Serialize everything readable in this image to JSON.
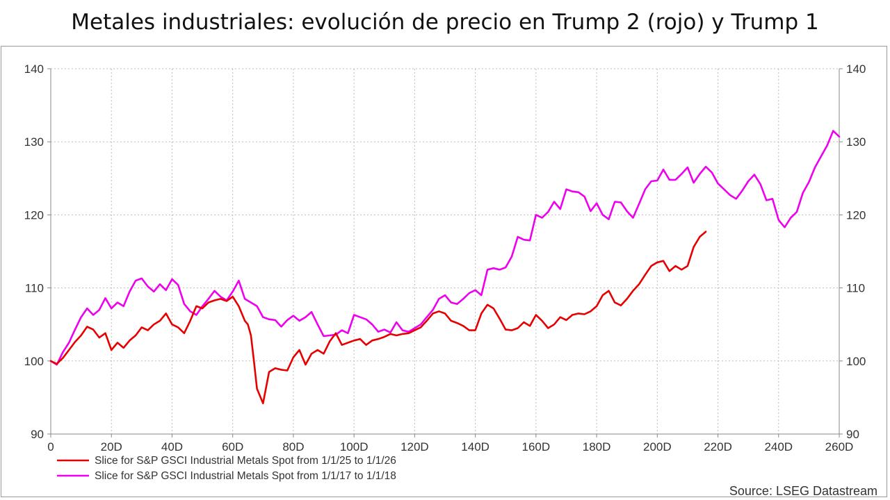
{
  "title": "Metales industriales: evolución de precio en Trump 2 (rojo) y Trump 1",
  "source": "Source: LSEG Datastream",
  "colors": {
    "red": "#e60000",
    "magenta": "#ee00ee",
    "grid": "#bbbbbb",
    "axis": "#888888"
  },
  "chart_data": {
    "type": "line",
    "title": "Metales industriales: evolución de precio en Trump 2 (rojo) y Trump 1",
    "xlabel": "",
    "ylabel": "",
    "xlim": [
      0,
      260
    ],
    "ylim": [
      90,
      140
    ],
    "x_ticks": [
      0,
      20,
      40,
      60,
      80,
      100,
      120,
      140,
      160,
      180,
      200,
      220,
      240,
      260
    ],
    "x_tick_labels": [
      "0",
      "20D",
      "40D",
      "60D",
      "80D",
      "100D",
      "120D",
      "140D",
      "160D",
      "180D",
      "200D",
      "220D",
      "240D",
      "260D"
    ],
    "y_ticks": [
      90,
      100,
      110,
      120,
      130,
      140
    ],
    "y_tick_labels": [
      "90",
      "100",
      "110",
      "120",
      "130",
      "140"
    ],
    "grid": true,
    "legend_position": "bottom-left",
    "series": [
      {
        "name": "Slice for S&P GSCI Industrial Metals Spot from 1/1/25 to 1/1/26",
        "color": "#e60000",
        "x": [
          0,
          2,
          4,
          6,
          8,
          10,
          12,
          14,
          16,
          18,
          20,
          22,
          24,
          26,
          28,
          30,
          32,
          34,
          36,
          38,
          40,
          42,
          44,
          46,
          48,
          50,
          52,
          54,
          56,
          58,
          60,
          62,
          64,
          65,
          66,
          67,
          68,
          70,
          72,
          74,
          76,
          78,
          80,
          82,
          84,
          86,
          88,
          90,
          92,
          94,
          96,
          98,
          100,
          102,
          104,
          106,
          108,
          110,
          112,
          114,
          116,
          118,
          120,
          122,
          124,
          126,
          128,
          130,
          132,
          134,
          136,
          138,
          140,
          142,
          144,
          146,
          148,
          150,
          152,
          154,
          156,
          158,
          160,
          162,
          164,
          166,
          168,
          170,
          172,
          174,
          176,
          178,
          180,
          182,
          184,
          186,
          188,
          190,
          192,
          194,
          196,
          198,
          200,
          202,
          204,
          206,
          208,
          210,
          212,
          214,
          216
        ],
        "values": [
          100,
          99.6,
          100.4,
          101.5,
          102.6,
          103.5,
          104.7,
          104.3,
          103.2,
          103.8,
          101.5,
          102.5,
          101.8,
          102.8,
          103.5,
          104.6,
          104.2,
          105,
          105.5,
          106.5,
          105,
          104.6,
          103.8,
          105.5,
          107.5,
          107.2,
          108,
          108.3,
          108.5,
          108.2,
          108.8,
          107.5,
          105.5,
          105,
          103.5,
          100,
          96.2,
          94.2,
          98.5,
          99,
          98.8,
          98.7,
          100.5,
          101.5,
          99.5,
          101,
          101.5,
          101,
          102.7,
          103.8,
          102.2,
          102.5,
          102.8,
          103,
          102.2,
          102.8,
          103,
          103.3,
          103.7,
          103.5,
          103.7,
          103.8,
          104.2,
          104.6,
          105.5,
          106.5,
          106.8,
          106.5,
          105.5,
          105.2,
          104.8,
          104.2,
          104.2,
          106.5,
          107.7,
          107.2,
          105.8,
          104.3,
          104.2,
          104.5,
          105.3,
          104.8,
          106.3,
          105.5,
          104.5,
          105,
          106,
          105.6,
          106.3,
          106.5,
          106.4,
          106.8,
          107.5,
          109,
          109.6,
          108,
          107.6,
          108.5,
          109.6,
          110.5,
          111.8,
          113,
          113.5,
          113.7,
          112.3,
          113,
          112.5,
          113,
          115.6,
          117,
          117.7
        ]
      },
      {
        "name": "Slice for S&P GSCI Industrial Metals Spot from 1/1/17 to 1/1/18",
        "color": "#ee00ee",
        "x": [
          0,
          2,
          4,
          6,
          8,
          10,
          12,
          14,
          16,
          18,
          20,
          22,
          24,
          26,
          28,
          30,
          32,
          34,
          36,
          38,
          40,
          42,
          44,
          46,
          48,
          50,
          52,
          54,
          56,
          58,
          60,
          62,
          64,
          66,
          68,
          70,
          72,
          74,
          76,
          78,
          80,
          82,
          84,
          86,
          88,
          90,
          92,
          94,
          96,
          98,
          100,
          102,
          104,
          106,
          108,
          110,
          112,
          114,
          116,
          118,
          120,
          122,
          124,
          126,
          128,
          130,
          132,
          134,
          136,
          138,
          140,
          142,
          144,
          146,
          148,
          150,
          152,
          154,
          156,
          158,
          160,
          162,
          164,
          166,
          168,
          170,
          172,
          174,
          176,
          178,
          180,
          182,
          184,
          186,
          188,
          190,
          192,
          194,
          196,
          198,
          200,
          202,
          204,
          206,
          208,
          210,
          212,
          214,
          216,
          218,
          220,
          222,
          224,
          226,
          228,
          230,
          232,
          234,
          236,
          238,
          240,
          242,
          244,
          246,
          248,
          250,
          252,
          254,
          256,
          258,
          260
        ],
        "values": [
          100,
          99.5,
          101.2,
          102.5,
          104.3,
          106,
          107.2,
          106.3,
          107,
          108.6,
          107.2,
          108,
          107.5,
          109.5,
          111,
          111.3,
          110.2,
          109.5,
          110.5,
          109.7,
          111.2,
          110.4,
          107.8,
          106.8,
          106.3,
          107.5,
          108.5,
          109.6,
          108.8,
          108.3,
          109.5,
          111,
          108.5,
          108,
          107.5,
          106,
          105.7,
          105.6,
          104.7,
          105.6,
          106.2,
          105.5,
          106,
          106.7,
          105,
          103.4,
          103.5,
          103.6,
          104.2,
          103.8,
          106.3,
          106,
          105.7,
          105,
          104,
          104.3,
          103.9,
          105.3,
          104.2,
          104,
          104.5,
          105,
          106,
          107,
          108.5,
          109,
          108,
          107.8,
          108.5,
          109.3,
          109.7,
          109,
          112.5,
          112.7,
          112.5,
          112.8,
          114.3,
          117,
          116.6,
          116.5,
          120,
          119.6,
          120.4,
          121.8,
          120.8,
          123.5,
          123.2,
          123.1,
          122.5,
          120.5,
          121.6,
          120,
          119.4,
          121.8,
          121.7,
          120.5,
          119.6,
          121.5,
          123.5,
          124.6,
          124.7,
          126.2,
          124.8,
          124.8,
          125.6,
          126.5,
          124.4,
          125.6,
          126.6,
          125.8,
          124.3,
          123.5,
          122.7,
          122.2,
          123.3,
          124.6,
          125.5,
          124.2,
          122,
          122.2,
          119.3,
          118.3,
          119.6,
          120.4,
          123,
          124.5,
          126.5,
          128,
          129.5,
          131.5,
          130.7
        ]
      }
    ]
  }
}
